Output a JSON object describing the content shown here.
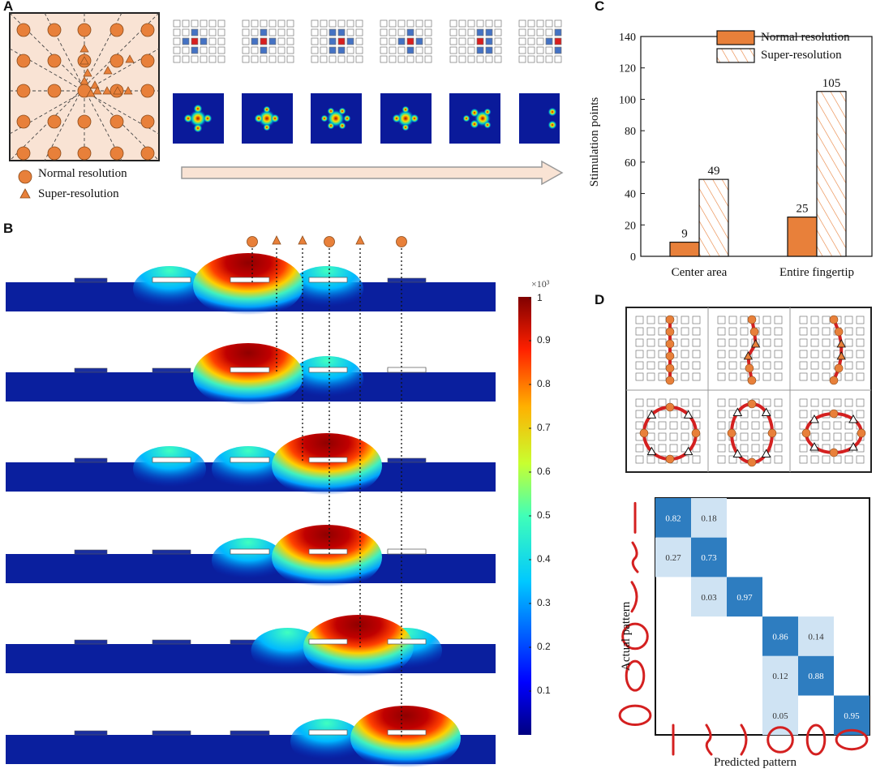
{
  "panels": {
    "a": {
      "label": "A",
      "legend_normal": "Normal resolution",
      "legend_super": "Super-resolution"
    },
    "b": {
      "label": "B",
      "colorbar_exponent": "×10³",
      "colorbar_ticks": [
        "1",
        "0.9",
        "0.8",
        "0.7",
        "0.6",
        "0.5",
        "0.4",
        "0.3",
        "0.2",
        "0.1"
      ],
      "marker_sequence": [
        "circle",
        "triangle",
        "triangle",
        "circle",
        "triangle",
        "circle"
      ]
    },
    "c": {
      "label": "C",
      "legend_normal": "Normal resolution",
      "legend_super": "Super-resolution",
      "ylabel": "Stimulation points"
    },
    "d": {
      "label": "D",
      "ylabel": "Actual pattern",
      "xlabel": "Predicted pattern"
    }
  },
  "colors": {
    "orange": "#E8803A",
    "orange_light": "#F9E3D4",
    "grid_blue": "#4472C4",
    "grid_red": "#D81E1E",
    "heat_red": "#C81414",
    "matrix_dark": "#2E7DC0",
    "matrix_light": "#CFE3F3"
  },
  "chart_data": [
    {
      "type": "bar",
      "categories": [
        "Center area",
        "Entire fingertip"
      ],
      "series": [
        {
          "name": "Normal resolution",
          "values": [
            9,
            25
          ]
        },
        {
          "name": "Super-resolution",
          "values": [
            49,
            105
          ]
        }
      ],
      "ylabel": "Stimulation points",
      "ylim": [
        0,
        140
      ],
      "yticks": [
        0,
        20,
        40,
        60,
        80,
        100,
        120,
        140
      ],
      "legend": "top-left"
    },
    {
      "type": "heatmap",
      "ylabel": "Actual pattern",
      "xlabel": "Predicted pattern",
      "cells": [
        {
          "row": 0,
          "col": 0,
          "value": "0.82"
        },
        {
          "row": 0,
          "col": 1,
          "value": "0.18"
        },
        {
          "row": 1,
          "col": 0,
          "value": "0.27"
        },
        {
          "row": 1,
          "col": 1,
          "value": "0.73"
        },
        {
          "row": 2,
          "col": 1,
          "value": "0.03"
        },
        {
          "row": 2,
          "col": 2,
          "value": "0.97"
        },
        {
          "row": 3,
          "col": 3,
          "value": "0.86"
        },
        {
          "row": 3,
          "col": 4,
          "value": "0.14"
        },
        {
          "row": 4,
          "col": 3,
          "value": "0.12"
        },
        {
          "row": 4,
          "col": 4,
          "value": "0.88"
        },
        {
          "row": 5,
          "col": 3,
          "value": "0.05"
        },
        {
          "row": 5,
          "col": 5,
          "value": "0.95"
        }
      ]
    }
  ]
}
